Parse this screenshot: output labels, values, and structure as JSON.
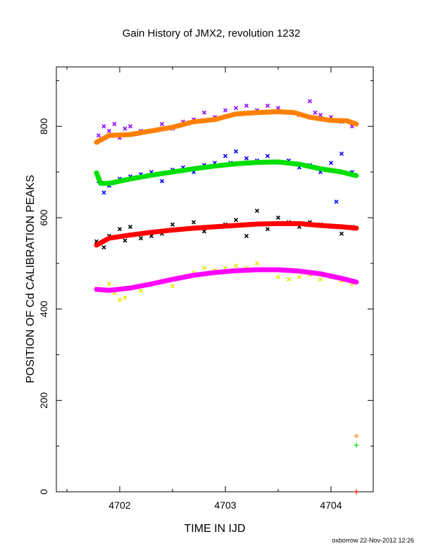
{
  "chart_data": {
    "type": "scatter",
    "title": "Gain History of JMX2, revolution 1232",
    "xlabel": "TIME IN IJD",
    "ylabel": "POSITION OF Cd CALIBRATION PEAKS",
    "xlim": [
      4701.4,
      4704.4
    ],
    "ylim": [
      0,
      930
    ],
    "xticks": [
      "4702",
      "4703",
      "4704"
    ],
    "yticks": [
      "0",
      "200",
      "400",
      "600",
      "800"
    ],
    "grid": false,
    "credit": "oxborrow 22-Nov-2012 12:26",
    "fits": [
      {
        "color": "#ff8000",
        "x": [
          4701.78,
          4701.9,
          4702.1,
          4702.3,
          4702.5,
          4702.7,
          4702.9,
          4703.1,
          4703.3,
          4703.5,
          4703.65,
          4703.8,
          4704.0,
          4704.15,
          4704.24
        ],
        "y": [
          765,
          780,
          782,
          790,
          798,
          810,
          815,
          827,
          830,
          832,
          830,
          820,
          813,
          812,
          805
        ]
      },
      {
        "color": "#00e000",
        "x": [
          4701.78,
          4701.82,
          4701.9,
          4702.1,
          4702.3,
          4702.5,
          4702.7,
          4702.9,
          4703.1,
          4703.3,
          4703.5,
          4703.7,
          4703.9,
          4704.1,
          4704.24
        ],
        "y": [
          698,
          675,
          675,
          685,
          693,
          700,
          707,
          713,
          718,
          721,
          722,
          717,
          707,
          700,
          692
        ]
      },
      {
        "color": "#ff0000",
        "x": [
          4701.78,
          4701.9,
          4702.1,
          4702.3,
          4702.5,
          4702.7,
          4702.9,
          4703.1,
          4703.3,
          4703.5,
          4703.7,
          4703.9,
          4704.1,
          4704.24
        ],
        "y": [
          540,
          555,
          562,
          568,
          573,
          577,
          580,
          583,
          586,
          587,
          587,
          583,
          580,
          577
        ]
      },
      {
        "color": "#ff00ff",
        "x": [
          4701.78,
          4701.9,
          4702.1,
          4702.3,
          4702.5,
          4702.7,
          4702.9,
          4703.1,
          4703.3,
          4703.5,
          4703.7,
          4703.9,
          4704.1,
          4704.24
        ],
        "y": [
          443,
          441,
          446,
          455,
          465,
          474,
          480,
          484,
          486,
          486,
          483,
          477,
          467,
          459
        ]
      }
    ],
    "scatter": [
      {
        "color": "#9400ff",
        "x": [
          4701.8,
          4701.85,
          4701.9,
          4701.95,
          4702.0,
          4702.05,
          4702.1,
          4702.15,
          4702.2,
          4702.3,
          4702.4,
          4702.5,
          4702.6,
          4702.7,
          4702.8,
          4702.9,
          4703.0,
          4703.1,
          4703.2,
          4703.3,
          4703.4,
          4703.5,
          4703.6,
          4703.7,
          4703.8,
          4703.85,
          4703.9,
          4704.0,
          4704.1,
          4704.2
        ],
        "y": [
          780,
          800,
          790,
          805,
          775,
          795,
          800,
          785,
          790,
          790,
          805,
          795,
          810,
          815,
          830,
          820,
          835,
          840,
          845,
          835,
          845,
          840,
          830,
          825,
          855,
          830,
          825,
          820,
          810,
          800
        ]
      },
      {
        "color": "#0000ff",
        "x": [
          4701.8,
          4701.85,
          4701.9,
          4702.0,
          4702.1,
          4702.2,
          4702.3,
          4702.4,
          4702.5,
          4702.6,
          4702.7,
          4702.8,
          4702.9,
          4703.0,
          4703.05,
          4703.1,
          4703.2,
          4703.3,
          4703.4,
          4703.5,
          4703.6,
          4703.7,
          4703.8,
          4703.9,
          4704.0,
          4704.05,
          4704.1,
          4704.2
        ],
        "y": [
          680,
          655,
          670,
          685,
          690,
          695,
          700,
          680,
          705,
          710,
          700,
          715,
          720,
          735,
          720,
          745,
          730,
          725,
          735,
          720,
          725,
          710,
          715,
          700,
          720,
          635,
          740,
          700
        ]
      },
      {
        "color": "#000000",
        "x": [
          4701.78,
          4701.85,
          4701.9,
          4702.0,
          4702.05,
          4702.1,
          4702.2,
          4702.3,
          4702.4,
          4702.5,
          4702.6,
          4702.7,
          4702.8,
          4702.9,
          4703.0,
          4703.1,
          4703.2,
          4703.3,
          4703.4,
          4703.5,
          4703.6,
          4703.7,
          4703.8,
          4703.9,
          4704.0,
          4704.1,
          4704.2
        ],
        "y": [
          548,
          535,
          560,
          575,
          550,
          580,
          555,
          560,
          565,
          585,
          575,
          590,
          570,
          580,
          585,
          595,
          560,
          615,
          575,
          600,
          590,
          580,
          590,
          585,
          580,
          565,
          580
        ]
      },
      {
        "color": "#e8e800",
        "x": [
          4701.78,
          4701.85,
          4701.9,
          4701.95,
          4702.0,
          4702.05,
          4702.1,
          4702.2,
          4702.3,
          4702.4,
          4702.5,
          4702.6,
          4702.7,
          4702.8,
          4702.9,
          4703.0,
          4703.1,
          4703.2,
          4703.3,
          4703.4,
          4703.5,
          4703.6,
          4703.7,
          4703.8,
          4703.9,
          4704.0,
          4704.1,
          4704.2
        ],
        "y": [
          445,
          440,
          455,
          435,
          420,
          425,
          445,
          440,
          455,
          460,
          450,
          470,
          480,
          490,
          485,
          490,
          495,
          490,
          500,
          485,
          470,
          465,
          470,
          475,
          465,
          470,
          462,
          455
        ]
      }
    ],
    "outliers": [
      {
        "color": "#ff8000",
        "x": 4704.24,
        "y": 122
      },
      {
        "color": "#00e000",
        "x": 4704.24,
        "y": 102
      },
      {
        "color": "#ff0000",
        "x": 4704.24,
        "y": 0
      }
    ]
  }
}
